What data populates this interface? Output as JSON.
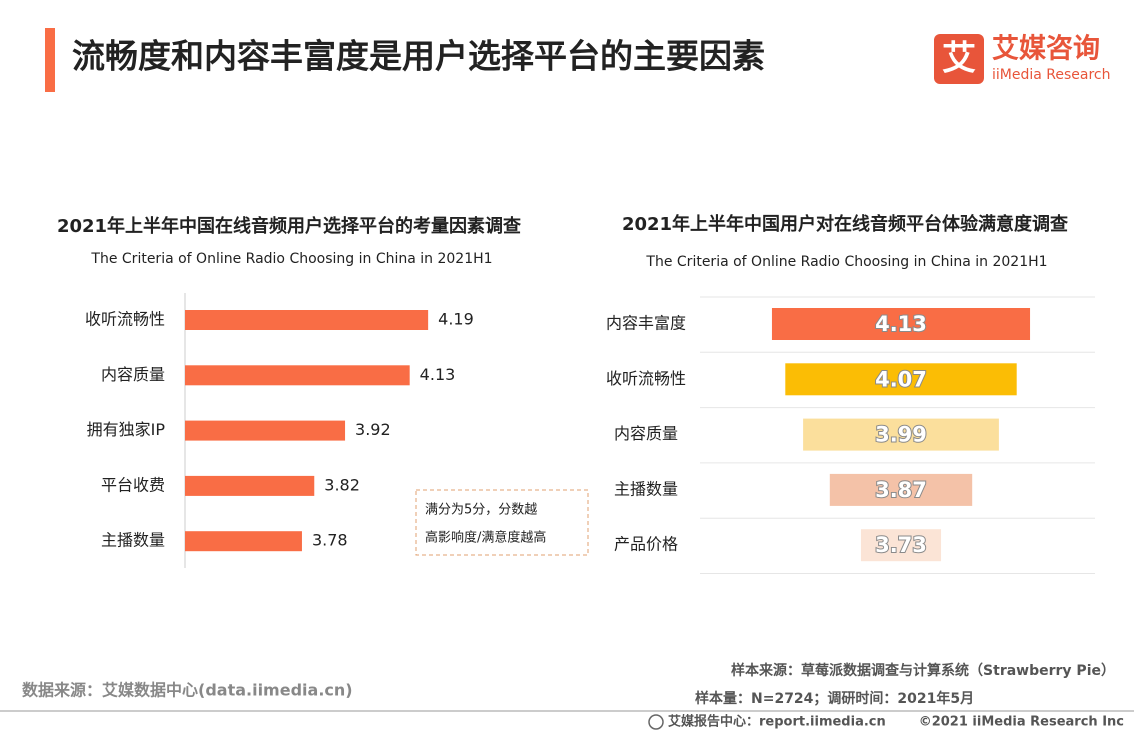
{
  "header": {
    "title": "流畅度和内容丰富度是用户选择平台的主要因素",
    "logo_mark": "艾",
    "logo_name": "艾媒咨询",
    "logo_en": "iiMedia Research"
  },
  "chart_data": [
    {
      "type": "hbar",
      "title": "2021年上半年中国在线音频用户选择平台的考量因素调查",
      "subtitle": "The Criteria of Online Radio Choosing in China in 2021H1",
      "categories": [
        "收听流畅性",
        "内容质量",
        "拥有独家IP",
        "平台收费",
        "主播数量"
      ],
      "values": [
        4.19,
        4.13,
        3.92,
        3.82,
        3.78
      ],
      "color": "#f96d45",
      "xlim": [
        3.4,
        4.3
      ],
      "annotation": [
        "满分为5分，分数越",
        "高影响度/满意度越高"
      ]
    },
    {
      "type": "funnel",
      "title": "2021年上半年中国用户对在线音频平台体验满意度调查",
      "subtitle": "The Criteria of Online Radio Choosing in China in 2021H1",
      "categories": [
        "内容丰富度",
        "收听流畅性",
        "内容质量",
        "主播数量",
        "产品价格"
      ],
      "values": [
        4.13,
        4.07,
        3.99,
        3.87,
        3.73
      ],
      "colors": [
        "#f96d45",
        "#fbbd05",
        "#fbdf9c",
        "#f4c2a8",
        "#fbe4d6"
      ],
      "xlim": [
        3.55,
        4.15
      ]
    }
  ],
  "footer": {
    "source": "数据来源：艾媒数据中心(data.iimedia.cn)",
    "sample_source": "样本来源：草莓派数据调查与计算系统（Strawberry Pie）",
    "sample_size": "样本量：N=2724；调研时间：2021年5月",
    "report_center": "艾媒报告中心：report.iimedia.cn",
    "copyright": "©2021  iiMedia Research  Inc"
  }
}
